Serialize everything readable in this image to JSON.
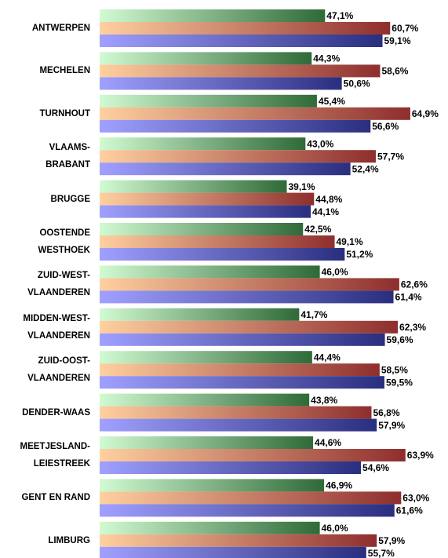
{
  "chart_data": {
    "type": "bar",
    "orientation": "horizontal",
    "categories": [
      "ANTWERPEN",
      "MECHELEN",
      "TURNHOUT",
      "VLAAMS-\nBRABANT",
      "BRUGGE",
      "OOSTENDE\nWESTHOEK",
      "ZUID-WEST-\nVLAANDEREN",
      "MIDDEN-WEST-\nVLAANDEREN",
      "ZUID-OOST-\nVLAANDEREN",
      "DENDER-WAAS",
      "MEETJESLAND-\nLEIESTREEK",
      "GENT EN RAND",
      "LIMBURG"
    ],
    "series": [
      {
        "gradient": [
          "#d2fad2",
          "#2f6a38"
        ],
        "values": [
          47.1,
          44.3,
          45.4,
          43.0,
          39.1,
          42.5,
          46.0,
          41.7,
          44.4,
          43.8,
          44.6,
          46.9,
          46.0
        ],
        "value_labels": [
          "47,1%",
          "44,3%",
          "45,4%",
          "43,0%",
          "39,1%",
          "42,5%",
          "46,0%",
          "41,7%",
          "44,4%",
          "43,8%",
          "44,6%",
          "46,9%",
          "46,0%"
        ]
      },
      {
        "gradient": [
          "#ffd0a0",
          "#8e2e2e"
        ],
        "values": [
          60.7,
          58.6,
          64.9,
          57.7,
          44.8,
          49.1,
          62.6,
          62.3,
          58.5,
          56.8,
          63.9,
          63.0,
          57.9
        ],
        "value_labels": [
          "60,7%",
          "58,6%",
          "64,9%",
          "57,7%",
          "44,8%",
          "49,1%",
          "62,6%",
          "62,3%",
          "58,5%",
          "56,8%",
          "63,9%",
          "63,0%",
          "57,9%"
        ]
      },
      {
        "gradient": [
          "#a0a0ff",
          "#2a2e7e"
        ],
        "values": [
          59.1,
          50.6,
          56.6,
          52.4,
          44.1,
          51.2,
          61.4,
          59.6,
          59.5,
          57.9,
          54.6,
          61.6,
          55.7
        ],
        "value_labels": [
          "59,1%",
          "50,6%",
          "56,6%",
          "52,4%",
          "44,1%",
          "51,2%",
          "61,4%",
          "59,6%",
          "59,5%",
          "57,9%",
          "54,6%",
          "61,6%",
          "55,7%"
        ]
      }
    ],
    "xlim": [
      0,
      70
    ]
  }
}
